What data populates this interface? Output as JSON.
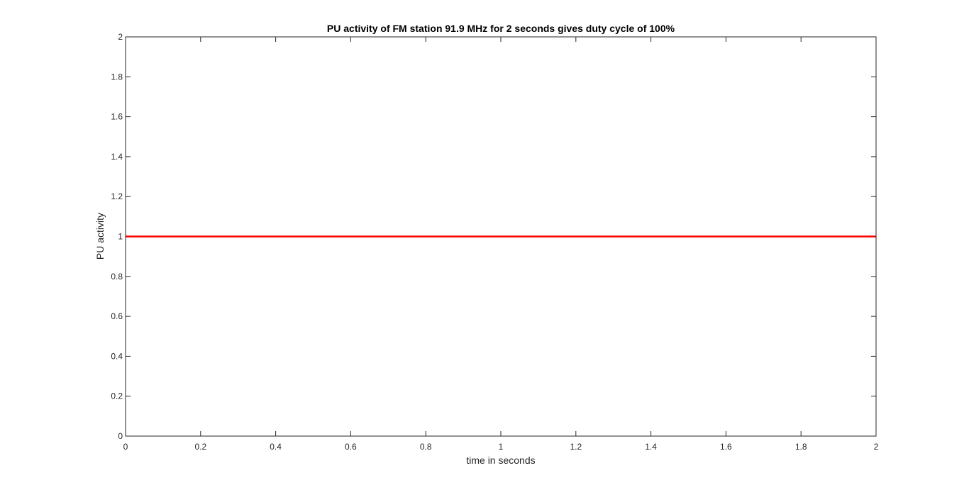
{
  "chart_data": {
    "type": "line",
    "title": "PU activity of FM station 91.9 MHz for 2 seconds gives duty cycle of 100%",
    "xlabel": "time in seconds",
    "ylabel": "PU activity",
    "xlim": [
      0,
      2
    ],
    "ylim": [
      0,
      2
    ],
    "x_ticks": [
      0,
      0.2,
      0.4,
      0.6,
      0.8,
      1,
      1.2,
      1.4,
      1.6,
      1.8,
      2
    ],
    "x_tick_labels": [
      "0",
      "0.2",
      "0.4",
      "0.6",
      "0.8",
      "1",
      "1.2",
      "1.4",
      "1.6",
      "1.8",
      "2"
    ],
    "y_ticks": [
      0,
      0.2,
      0.4,
      0.6,
      0.8,
      1,
      1.2,
      1.4,
      1.6,
      1.8,
      2
    ],
    "y_tick_labels": [
      "0",
      "0.2",
      "0.4",
      "0.6",
      "0.8",
      "1",
      "1.2",
      "1.4",
      "1.6",
      "1.8",
      "2"
    ],
    "grid": false,
    "series": [
      {
        "x": [
          0,
          2
        ],
        "y": [
          1,
          1
        ],
        "color": "#ff0000"
      }
    ]
  }
}
